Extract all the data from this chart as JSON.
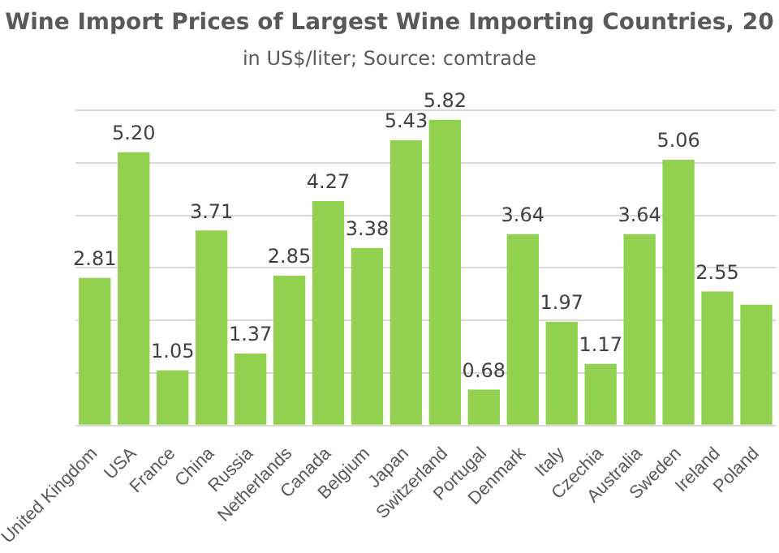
{
  "chart_data": {
    "type": "bar",
    "title": "Wine Import Prices of Largest Wine Importing Countries, 20",
    "subtitle": "in US$/liter; Source: comtrade",
    "categories": [
      "United Kingdom",
      "USA",
      "France",
      "China",
      "Russia",
      "Netherlands",
      "Canada",
      "Belgium",
      "Japan",
      "Switzerland",
      "Portugal",
      "Denmark",
      "Italy",
      "Czechia",
      "Australia",
      "Sweden",
      "Ireland",
      "Poland"
    ],
    "values": [
      2.81,
      5.2,
      1.05,
      3.71,
      1.37,
      2.85,
      4.27,
      3.38,
      5.43,
      5.82,
      0.68,
      3.64,
      1.97,
      1.17,
      3.64,
      5.06,
      2.55,
      2.3
    ],
    "value_labels": [
      "2.81",
      "5.20",
      "1.05",
      "3.71",
      "1.37",
      "2.85",
      "4.27",
      "3.38",
      "5.43",
      "5.82",
      "0.68",
      "3.64",
      "1.97",
      "1.17",
      "3.64",
      "5.06",
      "2.55",
      null
    ],
    "color": "#92d050",
    "ylim": [
      0,
      6
    ],
    "yticks": [
      0,
      1,
      2,
      3,
      4,
      5,
      6
    ],
    "grid": "y",
    "tick_labels": "x",
    "legend": false
  }
}
